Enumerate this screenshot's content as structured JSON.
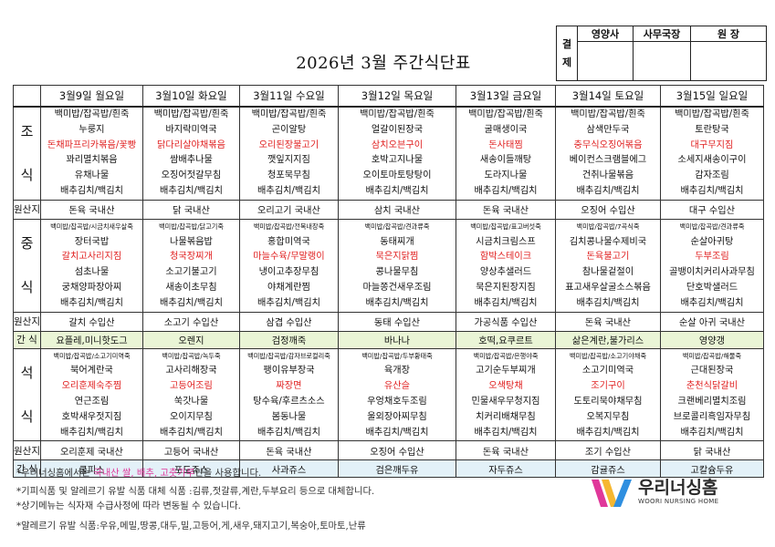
{
  "title": "2026년 3월 주간식단표",
  "approval": {
    "side_label": [
      "결",
      "제"
    ],
    "headers": [
      "영양사",
      "사무국장",
      "원 장"
    ]
  },
  "days": [
    "3월9일 월요일",
    "3월10일 화요일",
    "3월11일 수요일",
    "3월12일 목요일",
    "3월13일 금요일",
    "3월14일 토요일",
    "3월15일 일요일"
  ],
  "breakfast": {
    "label": [
      "조",
      "식"
    ],
    "menus": [
      [
        "백미밥/잡곡밥/흰죽",
        "누룽지",
        "돈채파프리카볶음/꽃빵",
        "꽈리멸치볶음",
        "유채나물",
        "배추김치/백김치"
      ],
      [
        "백미밥/잡곡밥/흰죽",
        "바지락미역국",
        "닭다리살야채볶음",
        "쌈배추나물",
        "오징어젓갈무침",
        "배추김치/백김치"
      ],
      [
        "백미밥/잡곡밥/흰죽",
        "곤이알탕",
        "오리된장불고기",
        "깻잎지지짐",
        "청포묵무침",
        "배추김치/백김치"
      ],
      [
        "백미밥/잡곡밥/흰죽",
        "얼갈이된장국",
        "삼치오븐구이",
        "호박고지나물",
        "오이토마토탕탕이",
        "배추김치/백김치"
      ],
      [
        "백미밥/잡곡밥/흰죽",
        "굴매생이국",
        "돈사태찜",
        "새송이들깨탕",
        "도라지나물",
        "배추김치/백김치"
      ],
      [
        "백미밥/잡곡밥/흰죽",
        "삼색만두국",
        "충무식오징어볶음",
        "베이컨스크램블에그",
        "건취나물볶음",
        "배추김치/백김치"
      ],
      [
        "백미밥/잡곡밥/흰죽",
        "토란탕국",
        "대구무지짐",
        "소세지새송이구이",
        "감자조림",
        "배추김치/백김치"
      ]
    ],
    "red_index": 2
  },
  "breakfast_origin": {
    "label": "원산지",
    "values": [
      "돈육 국내산",
      "닭 국내산",
      "오리고기 국내산",
      "삼치 국내산",
      "돈육 국내산",
      "오징어 수입산",
      "대구 수입산"
    ]
  },
  "lunch": {
    "label": [
      "중",
      "식"
    ],
    "menus": [
      [
        "백미밥/잡곡밥/시금치새우살죽",
        "장터국밥",
        "갈치고사리지짐",
        "섬초나물",
        "궁채양파장아찌",
        "배추김치/백김치"
      ],
      [
        "백미밥/잡곡밥/닭고기죽",
        "나물볶음밥",
        "청국장찌개",
        "소고기불고기",
        "새송이초무침",
        "배추김치/백김치"
      ],
      [
        "백미밥/잡곡밥/전복내장죽",
        "홍합미역국",
        "마늘수육/무말랭이",
        "냉이고추장무침",
        "야채계란찜",
        "배추김치/백김치"
      ],
      [
        "백미밥/잡곡밥/견과류죽",
        "동태찌개",
        "묵은지닭찜",
        "콩나물무침",
        "마늘쫑건새우조림",
        "배추김치/백김치"
      ],
      [
        "백미밥/잡곡밥/표고버섯죽",
        "시금치크림스프",
        "함박스테이크",
        "양상추샐러드",
        "묵은지된장지짐",
        "배추김치/백김치"
      ],
      [
        "백미밥/잡곡밥/7곡식죽",
        "김치콩나물수제비국",
        "돈육불고기",
        "참나물겉절이",
        "표고새우살굴소스볶음",
        "배추김치/백김치"
      ],
      [
        "백미밥/잡곡밥/견과류죽",
        "순살아귀탕",
        "두부조림",
        "골뱅이치커리사과무침",
        "단호박샐러드",
        "배추김치/백김치"
      ]
    ],
    "red_index": 2
  },
  "lunch_origin": {
    "label": "원산지",
    "values": [
      "갈치 수입산",
      "소고기 수입산",
      "삼겹 수입산",
      "동태 수입산",
      "가공식품 수입산",
      "돈육 국내산",
      "순살 아귀 국내산"
    ]
  },
  "snack1": {
    "label": "간 식",
    "values": [
      "요플레,미니핫도그",
      "오렌지",
      "검정깨죽",
      "바나나",
      "호떡,요쿠르트",
      "삶은계란,불가리스",
      "영양갱"
    ]
  },
  "dinner": {
    "label": [
      "석",
      "식"
    ],
    "menus": [
      [
        "백미밥/잡곡밥/소고기미역죽",
        "북어계란국",
        "오리훈제숙주찜",
        "연근조림",
        "호박새우젓지짐",
        "배추김치/백김치"
      ],
      [
        "백미밥/잡곡밥/녹두죽",
        "고사리해장국",
        "고등어조림",
        "쑥갓나물",
        "오이지무침",
        "배추김치/백김치"
      ],
      [
        "백미밥/잡곡밥/감자브로컬리죽",
        "팽이유부장국",
        "짜장면",
        "탕수육/후르츠소스",
        "봄동나물",
        "배추김치/백김치"
      ],
      [
        "백미밥/잡곡밥/두부황태죽",
        "육개장",
        "유산슬",
        "우엉채호두조림",
        "울외장아찌무침",
        "배추김치/백김치"
      ],
      [
        "백미밥/잡곡밥/은행야죽",
        "고기순두부찌개",
        "오색탕채",
        "민물새우무청지짐",
        "치커리배채무침",
        "배추김치/백김치"
      ],
      [
        "백미밥/잡곡밥/소고기야채죽",
        "소고기미역국",
        "조기구이",
        "도토리묵야채무침",
        "오복지무침",
        "배추김치/백김치"
      ],
      [
        "백미밥/잡곡밥/해물죽",
        "근대된장국",
        "춘천식닭갈비",
        "크랜베리멸치조림",
        "브로콜리흑임자무침",
        "배추김치/백김치"
      ]
    ],
    "red_index": 2
  },
  "dinner_origin": {
    "label": "원산지",
    "values": [
      "오리훈제 국내산",
      "고등어 국내산",
      "돈육 국내산",
      "오징어 수입산",
      "돈육 국내산",
      "조기 수입산",
      "닭 국내산"
    ]
  },
  "snack2": {
    "label": "간 식",
    "values": [
      "쿨피스",
      "포도쥬스",
      "사과쥬스",
      "검은깨두유",
      "자두쥬스",
      "감귤쥬스",
      "고칼슘두유"
    ]
  },
  "notes": {
    "line1_a": "*우리너싱홈에서는 ",
    "line1_b": "국내산 쌀, 배추, 고춧가루",
    "line1_c": "만을 사용합니다.",
    "line2": "*기피식품 및 알레르기 유발 식품 대체 식품 :김류,젓갈류,계란,두부요리 등으로 대체합니다.",
    "line3": "*상기메뉴는 식자재 수급사정에 따라 변동될 수 있습니다.",
    "line4": "*알레르기 유발 식품:우유,메밀,땅콩,대두,밀,고등어,게,새우,돼지고기,복숭아,토마토,난류"
  },
  "logo": {
    "name": "우리너싱홈",
    "sub": "WOORI NURSING HOME",
    "colors": [
      "#e0389a",
      "#f6b731",
      "#2f8fe0"
    ]
  }
}
